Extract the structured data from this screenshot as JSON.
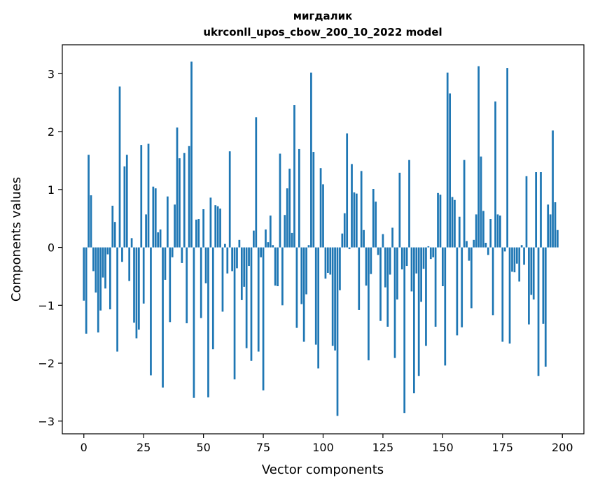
{
  "chart_data": {
    "type": "bar",
    "title": [
      "мигдалик",
      "ukrconll_upos_cbow_200_10_2022 model"
    ],
    "xlabel": "Vector components",
    "ylabel": "Components values",
    "xlim": [
      -9,
      209
    ],
    "ylim": [
      -3.22,
      3.5
    ],
    "xticks": [
      0,
      25,
      50,
      75,
      100,
      125,
      150,
      175,
      200
    ],
    "yticks": [
      -3,
      -2,
      -1,
      0,
      1,
      2,
      3
    ],
    "ytick_labels": [
      "−3",
      "−2",
      "−1",
      "0",
      "1",
      "2",
      "3"
    ],
    "grid": false,
    "color": "#1f77b4",
    "values": [
      -0.92,
      -1.49,
      1.6,
      0.9,
      -0.41,
      -0.78,
      -1.47,
      -1.09,
      -0.52,
      -0.71,
      -0.12,
      -1.07,
      0.72,
      0.44,
      -1.8,
      2.78,
      -0.25,
      1.4,
      1.6,
      -0.58,
      0.16,
      -1.3,
      -1.57,
      -1.42,
      1.77,
      -0.97,
      0.57,
      1.79,
      -2.21,
      1.05,
      1.02,
      0.26,
      0.31,
      -2.42,
      -0.56,
      0.88,
      -1.29,
      -0.17,
      0.74,
      2.07,
      1.54,
      -0.27,
      1.63,
      -1.31,
      1.75,
      3.21,
      -2.6,
      0.48,
      0.49,
      -1.22,
      0.66,
      -0.62,
      -2.59,
      0.86,
      -1.76,
      0.73,
      0.71,
      0.67,
      -1.11,
      0.06,
      -0.45,
      1.66,
      -0.41,
      -2.28,
      -0.36,
      0.13,
      -0.91,
      -0.68,
      -1.74,
      -0.32,
      -1.96,
      0.29,
      2.25,
      -1.8,
      -0.17,
      -2.47,
      0.31,
      0.09,
      0.55,
      0.04,
      -0.66,
      -0.67,
      1.62,
      -1.0,
      0.56,
      1.02,
      1.36,
      0.25,
      2.46,
      -1.39,
      1.7,
      -0.98,
      -1.63,
      -0.81,
      0.04,
      3.02,
      1.65,
      -1.68,
      -2.09,
      1.37,
      1.09,
      -0.54,
      -0.44,
      -0.47,
      -1.7,
      -1.78,
      -2.91,
      -0.74,
      0.24,
      0.59,
      1.97,
      -0.03,
      1.44,
      0.95,
      0.93,
      -1.08,
      1.32,
      0.3,
      -0.66,
      -1.95,
      -0.46,
      1.01,
      0.79,
      -0.13,
      -1.27,
      0.23,
      -0.69,
      -1.37,
      -0.47,
      0.34,
      -1.91,
      -0.9,
      1.29,
      -0.38,
      -2.86,
      -0.32,
      1.51,
      -0.76,
      -2.52,
      -0.45,
      -2.22,
      -0.94,
      -0.37,
      -1.7,
      0.02,
      -0.2,
      -0.17,
      -1.37,
      0.94,
      0.91,
      -0.67,
      -2.04,
      3.02,
      2.66,
      0.87,
      0.82,
      -1.52,
      0.53,
      -1.38,
      1.51,
      0.11,
      -0.23,
      -1.05,
      0.13,
      0.57,
      3.13,
      1.57,
      0.63,
      0.08,
      -0.13,
      0.49,
      -1.17,
      2.52,
      0.57,
      0.55,
      -1.63,
      -0.07,
      3.1,
      -1.66,
      -0.42,
      -0.43,
      -0.28,
      -0.59,
      0.04,
      -0.3,
      1.23,
      -1.33,
      -0.82,
      -0.9,
      1.3,
      -2.22,
      1.3,
      -1.32,
      -2.06,
      0.74,
      0.57,
      2.02,
      0.78,
      0.3
    ]
  }
}
